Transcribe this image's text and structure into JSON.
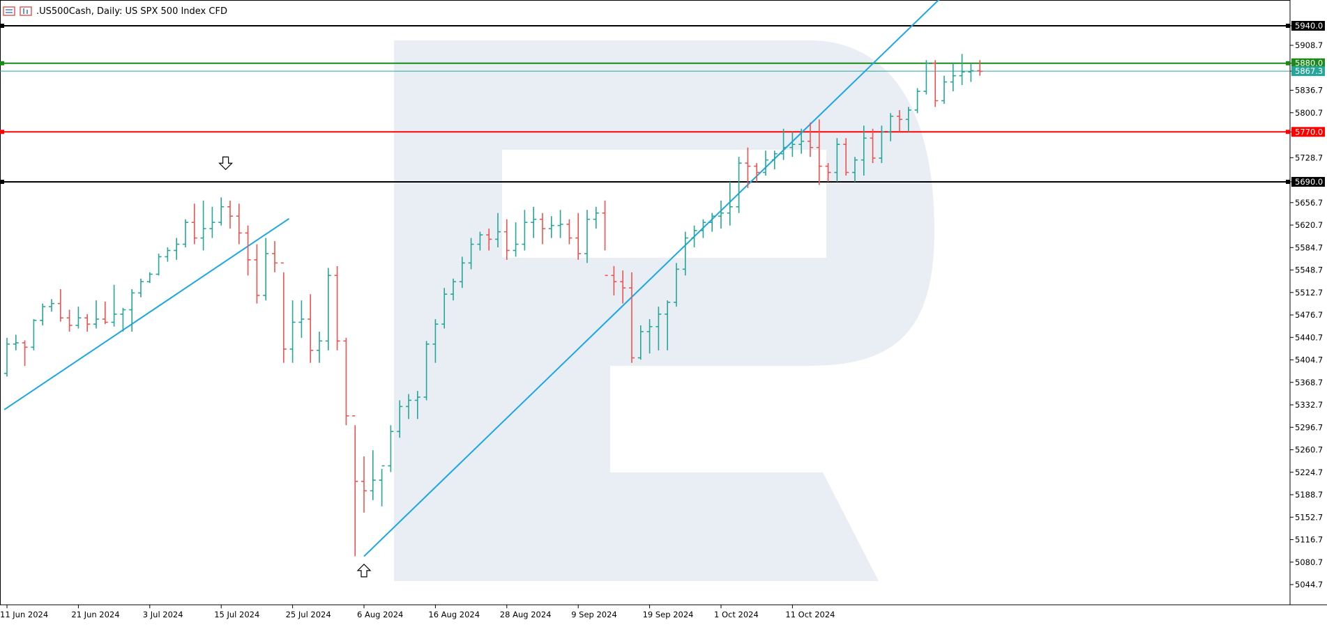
{
  "header": {
    "symbol_title": ".US500Cash, Daily:  US SPX 500 Index CFD",
    "icons": [
      "chart-list-icon",
      "chart-bars-icon"
    ]
  },
  "watermark": "R",
  "colors": {
    "bull": "#26a69a",
    "bear": "#ef5350",
    "trendline": "#1aa6e8",
    "resistance": "#000000",
    "target": "#1b8a1b",
    "key_level": "#ff0000",
    "current_price": "#26a69a",
    "watermark": "#e9edf4"
  },
  "chart_data": {
    "type": "ohlc",
    "y_range": [
      5020,
      5960
    ],
    "y_ticks": [
      "5940.0",
      "5908.7",
      "5880.0",
      "5867.3",
      "5836.7",
      "5800.7",
      "5770.0",
      "5728.7",
      "5690.0",
      "5656.7",
      "5620.7",
      "5584.7",
      "5548.7",
      "5512.7",
      "5476.7",
      "5440.7",
      "5404.7",
      "5368.7",
      "5332.7",
      "5296.7",
      "5260.7",
      "5224.7",
      "5188.7",
      "5152.7",
      "5116.7",
      "5080.7",
      "5044.7"
    ],
    "y_tick_values": [
      5940,
      5908.7,
      5880,
      5867.3,
      5836.7,
      5800.7,
      5770,
      5728.7,
      5690,
      5656.7,
      5620.7,
      5584.7,
      5548.7,
      5512.7,
      5476.7,
      5440.7,
      5404.7,
      5368.7,
      5332.7,
      5296.7,
      5260.7,
      5224.7,
      5188.7,
      5152.7,
      5116.7,
      5080.7,
      5044.7
    ],
    "x_ticks": [
      {
        "label": "11 Jun 2024",
        "index": 0
      },
      {
        "label": "21 Jun 2024",
        "index": 8
      },
      {
        "label": "3 Jul 2024",
        "index": 16
      },
      {
        "label": "15 Jul 2024",
        "index": 24
      },
      {
        "label": "25 Jul 2024",
        "index": 32
      },
      {
        "label": "6 Aug 2024",
        "index": 40
      },
      {
        "label": "16 Aug 2024",
        "index": 48
      },
      {
        "label": "28 Aug 2024",
        "index": 56
      },
      {
        "label": "9 Sep 2024",
        "index": 64
      },
      {
        "label": "19 Sep 2024",
        "index": 72
      },
      {
        "label": "1 Oct 2024",
        "index": 80
      },
      {
        "label": "11 Oct 2024",
        "index": 88
      }
    ],
    "bars": [
      [
        5383,
        5440,
        5378,
        5430
      ],
      [
        5430,
        5445,
        5420,
        5432
      ],
      [
        5432,
        5436,
        5395,
        5425
      ],
      [
        5425,
        5470,
        5420,
        5468
      ],
      [
        5468,
        5495,
        5460,
        5490
      ],
      [
        5490,
        5502,
        5482,
        5495
      ],
      [
        5495,
        5518,
        5466,
        5472
      ],
      [
        5472,
        5485,
        5450,
        5460
      ],
      [
        5460,
        5490,
        5455,
        5472
      ],
      [
        5472,
        5478,
        5450,
        5462
      ],
      [
        5462,
        5500,
        5455,
        5470
      ],
      [
        5470,
        5498,
        5462,
        5465
      ],
      [
        5465,
        5525,
        5458,
        5478
      ],
      [
        5478,
        5488,
        5450,
        5485
      ],
      [
        5485,
        5518,
        5450,
        5512
      ],
      [
        5512,
        5535,
        5505,
        5530
      ],
      [
        5530,
        5545,
        5528,
        5542
      ],
      [
        5542,
        5575,
        5540,
        5570
      ],
      [
        5570,
        5585,
        5562,
        5580
      ],
      [
        5580,
        5600,
        5565,
        5590
      ],
      [
        5590,
        5630,
        5585,
        5625
      ],
      [
        5625,
        5655,
        5590,
        5600
      ],
      [
        5600,
        5660,
        5580,
        5615
      ],
      [
        5615,
        5650,
        5600,
        5625
      ],
      [
        5625,
        5665,
        5620,
        5650
      ],
      [
        5650,
        5660,
        5615,
        5635
      ],
      [
        5635,
        5655,
        5590,
        5608
      ],
      [
        5608,
        5620,
        5540,
        5565
      ],
      [
        5565,
        5590,
        5495,
        5508
      ],
      [
        5508,
        5600,
        5500,
        5575
      ],
      [
        5575,
        5595,
        5545,
        5560
      ],
      [
        5560,
        5545,
        5400,
        5422
      ],
      [
        5422,
        5500,
        5400,
        5465
      ],
      [
        5465,
        5500,
        5440,
        5470
      ],
      [
        5470,
        5510,
        5400,
        5420
      ],
      [
        5420,
        5450,
        5400,
        5435
      ],
      [
        5435,
        5552,
        5420,
        5540
      ],
      [
        5540,
        5555,
        5420,
        5435
      ],
      [
        5435,
        5440,
        5300,
        5315
      ],
      [
        5315,
        5300,
        5090,
        5210
      ],
      [
        5210,
        5250,
        5160,
        5195
      ],
      [
        5195,
        5260,
        5180,
        5212
      ],
      [
        5212,
        5230,
        5170,
        5235
      ],
      [
        5235,
        5300,
        5225,
        5290
      ],
      [
        5290,
        5340,
        5280,
        5330
      ],
      [
        5330,
        5350,
        5310,
        5340
      ],
      [
        5340,
        5355,
        5310,
        5345
      ],
      [
        5345,
        5435,
        5340,
        5430
      ],
      [
        5430,
        5470,
        5400,
        5462
      ],
      [
        5462,
        5520,
        5455,
        5510
      ],
      [
        5510,
        5535,
        5500,
        5530
      ],
      [
        5530,
        5570,
        5520,
        5560
      ],
      [
        5560,
        5600,
        5550,
        5590
      ],
      [
        5590,
        5610,
        5580,
        5605
      ],
      [
        5605,
        5615,
        5580,
        5598
      ],
      [
        5598,
        5640,
        5585,
        5610
      ],
      [
        5610,
        5630,
        5565,
        5580
      ],
      [
        5580,
        5625,
        5570,
        5590
      ],
      [
        5590,
        5645,
        5580,
        5625
      ],
      [
        5625,
        5650,
        5600,
        5630
      ],
      [
        5630,
        5640,
        5590,
        5615
      ],
      [
        5615,
        5635,
        5600,
        5620
      ],
      [
        5620,
        5645,
        5600,
        5622
      ],
      [
        5622,
        5630,
        5590,
        5600
      ],
      [
        5600,
        5640,
        5565,
        5575
      ],
      [
        5575,
        5645,
        5560,
        5630
      ],
      [
        5630,
        5650,
        5615,
        5640
      ],
      [
        5640,
        5660,
        5580,
        5540
      ],
      [
        5540,
        5555,
        5508,
        5530
      ],
      [
        5530,
        5548,
        5495,
        5520
      ],
      [
        5520,
        5545,
        5400,
        5408
      ],
      [
        5408,
        5460,
        5405,
        5450
      ],
      [
        5450,
        5470,
        5415,
        5458
      ],
      [
        5458,
        5490,
        5420,
        5478
      ],
      [
        5478,
        5500,
        5420,
        5497
      ],
      [
        5497,
        5560,
        5490,
        5550
      ],
      [
        5550,
        5610,
        5540,
        5600
      ],
      [
        5600,
        5620,
        5585,
        5612
      ],
      [
        5612,
        5630,
        5600,
        5625
      ],
      [
        5625,
        5640,
        5610,
        5635
      ],
      [
        5635,
        5660,
        5615,
        5640
      ],
      [
        5640,
        5690,
        5620,
        5650
      ],
      [
        5650,
        5730,
        5640,
        5720
      ],
      [
        5720,
        5745,
        5680,
        5715
      ],
      [
        5715,
        5720,
        5690,
        5705
      ],
      [
        5705,
        5740,
        5700,
        5725
      ],
      [
        5725,
        5740,
        5710,
        5735
      ],
      [
        5735,
        5775,
        5725,
        5745
      ],
      [
        5745,
        5770,
        5730,
        5750
      ],
      [
        5750,
        5775,
        5735,
        5755
      ],
      [
        5755,
        5785,
        5730,
        5745
      ],
      [
        5745,
        5790,
        5685,
        5715
      ],
      [
        5715,
        5720,
        5690,
        5705
      ],
      [
        5705,
        5760,
        5690,
        5750
      ],
      [
        5750,
        5760,
        5700,
        5705
      ],
      [
        5705,
        5730,
        5690,
        5725
      ],
      [
        5725,
        5780,
        5700,
        5760
      ],
      [
        5760,
        5775,
        5720,
        5728
      ],
      [
        5728,
        5780,
        5720,
        5770
      ],
      [
        5770,
        5800,
        5755,
        5795
      ],
      [
        5795,
        5805,
        5770,
        5790
      ],
      [
        5790,
        5810,
        5770,
        5805
      ],
      [
        5805,
        5840,
        5800,
        5835
      ],
      [
        5835,
        5885,
        5830,
        5880
      ],
      [
        5880,
        5885,
        5810,
        5820
      ],
      [
        5820,
        5860,
        5815,
        5850
      ],
      [
        5850,
        5880,
        5835,
        5860
      ],
      [
        5860,
        5895,
        5845,
        5866
      ],
      [
        5866,
        5880,
        5850,
        5868
      ],
      [
        5868,
        5885,
        5860,
        5867
      ]
    ],
    "levels": [
      {
        "name": "resistance-upper",
        "value": 5940.0,
        "color": "#000000"
      },
      {
        "name": "target",
        "value": 5880.0,
        "color": "#1b8a1b"
      },
      {
        "name": "current-price",
        "value": 5867.3,
        "color": "#26a69a"
      },
      {
        "name": "key-level",
        "value": 5770.0,
        "color": "#ff0000"
      },
      {
        "name": "support",
        "value": 5690.0,
        "color": "#000000"
      }
    ],
    "trendlines": [
      {
        "name": "rising-trendline-1",
        "from": {
          "index": -0.3,
          "value": 5325
        },
        "to": {
          "index": 31.6,
          "value": 5631
        }
      },
      {
        "name": "rising-trendline-2",
        "from": {
          "index": 40.0,
          "value": 5090
        },
        "to": {
          "index": 105.0,
          "value": 5990
        }
      }
    ],
    "arrows": [
      {
        "name": "down-arrow-marker",
        "index": 24.5,
        "value": 5712,
        "direction": "down"
      },
      {
        "name": "up-arrow-marker",
        "index": 40.0,
        "value": 5075,
        "direction": "up"
      }
    ]
  }
}
